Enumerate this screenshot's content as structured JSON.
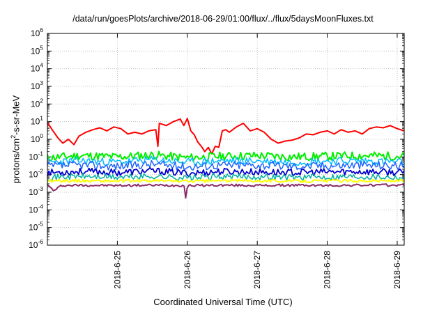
{
  "chart_data": {
    "type": "line",
    "title": "/data/run/goesPlots/archive/2018-06-29/01:00/flux/../flux/5daysMoonFluxes.txt",
    "xlabel": "Coordinated Universal Time (UTC)",
    "ylabel": {
      "prefix": "protons/cm",
      "sup": "2",
      "suffix": "-s-sr-MeV"
    },
    "xlim": [
      0,
      5.1
    ],
    "yscale": "log",
    "ylim_exp": [
      -6,
      6
    ],
    "grid": true,
    "xticks": [
      {
        "label": "2018-6-25",
        "x": 1.0
      },
      {
        "label": "2018-6-26",
        "x": 2.0
      },
      {
        "label": "2018-6-27",
        "x": 3.0
      },
      {
        "label": "2018-6-28",
        "x": 4.0
      },
      {
        "label": "2018-6-29",
        "x": 5.0
      }
    ],
    "yticks": [
      {
        "base": "10",
        "exp": "6"
      },
      {
        "base": "10",
        "exp": "5"
      },
      {
        "base": "10",
        "exp": "4"
      },
      {
        "base": "10",
        "exp": "3"
      },
      {
        "base": "10",
        "exp": "2"
      },
      {
        "base": "10",
        "exp": "1"
      },
      {
        "base": "10",
        "exp": "0"
      },
      {
        "base": "10",
        "exp": "-1"
      },
      {
        "base": "10",
        "exp": "-2"
      },
      {
        "base": "10",
        "exp": "-3"
      },
      {
        "base": "10",
        "exp": "-4"
      },
      {
        "base": "10",
        "exp": "-5"
      },
      {
        "base": "10",
        "exp": "-6"
      }
    ],
    "series": [
      {
        "color": "#ff0000",
        "width": 2,
        "x": [
          0,
          0.08,
          0.15,
          0.22,
          0.3,
          0.38,
          0.45,
          0.55,
          0.65,
          0.75,
          0.85,
          0.95,
          1.05,
          1.15,
          1.25,
          1.35,
          1.45,
          1.55,
          1.58,
          1.6,
          1.7,
          1.8,
          1.9,
          1.95,
          2.0,
          2.05,
          2.1,
          2.15,
          2.2,
          2.25,
          2.3,
          2.35,
          2.4,
          2.45,
          2.5,
          2.55,
          2.6,
          2.7,
          2.8,
          2.9,
          3.0,
          3.1,
          3.2,
          3.3,
          3.4,
          3.5,
          3.6,
          3.7,
          3.8,
          3.9,
          4.0,
          4.1,
          4.2,
          4.3,
          4.4,
          4.5,
          4.6,
          4.7,
          4.8,
          4.9,
          5.0,
          5.1
        ],
        "y": [
          9,
          3,
          1.2,
          0.6,
          1.0,
          0.5,
          1.5,
          2.5,
          3.5,
          4.5,
          3,
          5,
          4,
          2,
          2.5,
          2,
          3,
          3.5,
          0.4,
          8,
          6,
          10,
          14,
          6,
          15,
          3,
          1.8,
          0.7,
          0.4,
          0.2,
          0.35,
          0.15,
          0.4,
          0.35,
          3,
          3.5,
          2.5,
          5,
          8,
          3,
          4,
          2.5,
          1.0,
          0.6,
          0.8,
          0.9,
          1.2,
          2,
          1.8,
          2.5,
          3,
          2,
          3.5,
          2.5,
          3,
          2,
          4,
          5,
          4.5,
          6,
          4,
          3
        ]
      },
      {
        "color": "#00ee00",
        "width": 2,
        "noise": 0.55,
        "seed": 11,
        "x": [
          0,
          0.5,
          1.0,
          1.5,
          2.0,
          2.5,
          3.0,
          3.5,
          4.0,
          4.5,
          5.1
        ],
        "y": [
          0.09,
          0.12,
          0.1,
          0.13,
          0.09,
          0.11,
          0.12,
          0.1,
          0.11,
          0.12,
          0.11
        ]
      },
      {
        "color": "#00bbff",
        "width": 1.5,
        "noise": 0.5,
        "seed": 23,
        "x": [
          0,
          0.5,
          1.0,
          1.5,
          2.0,
          2.5,
          3.0,
          3.5,
          4.0,
          4.5,
          5.1
        ],
        "y": [
          0.05,
          0.06,
          0.05,
          0.07,
          0.05,
          0.06,
          0.06,
          0.05,
          0.06,
          0.06,
          0.05
        ]
      },
      {
        "color": "#1e64ff",
        "width": 1.5,
        "noise": 0.55,
        "seed": 37,
        "x": [
          0,
          0.5,
          1.0,
          1.5,
          2.0,
          2.5,
          3.0,
          3.5,
          4.0,
          4.5,
          5.1
        ],
        "y": [
          0.03,
          0.035,
          0.03,
          0.04,
          0.028,
          0.035,
          0.035,
          0.03,
          0.033,
          0.035,
          0.032
        ]
      },
      {
        "color": "#0000cc",
        "width": 1.8,
        "noise": 0.45,
        "seed": 53,
        "x": [
          0,
          0.5,
          1.0,
          1.5,
          2.0,
          2.5,
          3.0,
          3.5,
          4.0,
          4.5,
          5.1
        ],
        "y": [
          0.013,
          0.015,
          0.013,
          0.016,
          0.012,
          0.015,
          0.014,
          0.013,
          0.014,
          0.015,
          0.013
        ]
      },
      {
        "color": "#00b0a0",
        "width": 1.5,
        "noise": 0.4,
        "seed": 71,
        "x": [
          0,
          0.5,
          1.0,
          1.5,
          2.0,
          2.5,
          3.0,
          3.5,
          4.0,
          4.5,
          5.1
        ],
        "y": [
          0.007,
          0.008,
          0.007,
          0.008,
          0.0065,
          0.0075,
          0.0075,
          0.007,
          0.0075,
          0.008,
          0.007
        ]
      },
      {
        "color": "#ffff00",
        "width": 2,
        "noise": 0.18,
        "seed": 89,
        "x": [
          0,
          0.5,
          1.0,
          1.5,
          2.0,
          2.5,
          3.0,
          3.5,
          4.0,
          4.5,
          5.1
        ],
        "y": [
          0.0045,
          0.0045,
          0.0043,
          0.0045,
          0.0042,
          0.0045,
          0.0045,
          0.0043,
          0.0044,
          0.0045,
          0.0044
        ]
      },
      {
        "color": "#8b2a6a",
        "width": 2,
        "noise": 0.15,
        "seed": 97,
        "x": [
          0,
          0.1,
          0.2,
          0.5,
          1.0,
          1.5,
          1.96,
          1.98,
          2.0,
          2.5,
          3.0,
          3.5,
          4.0,
          4.5,
          5.1
        ],
        "y": [
          0.0025,
          0.0012,
          0.0024,
          0.0025,
          0.0024,
          0.0025,
          0.0024,
          0.0003,
          0.0024,
          0.0025,
          0.0024,
          0.0025,
          0.0024,
          0.0025,
          0.0025
        ]
      }
    ]
  }
}
